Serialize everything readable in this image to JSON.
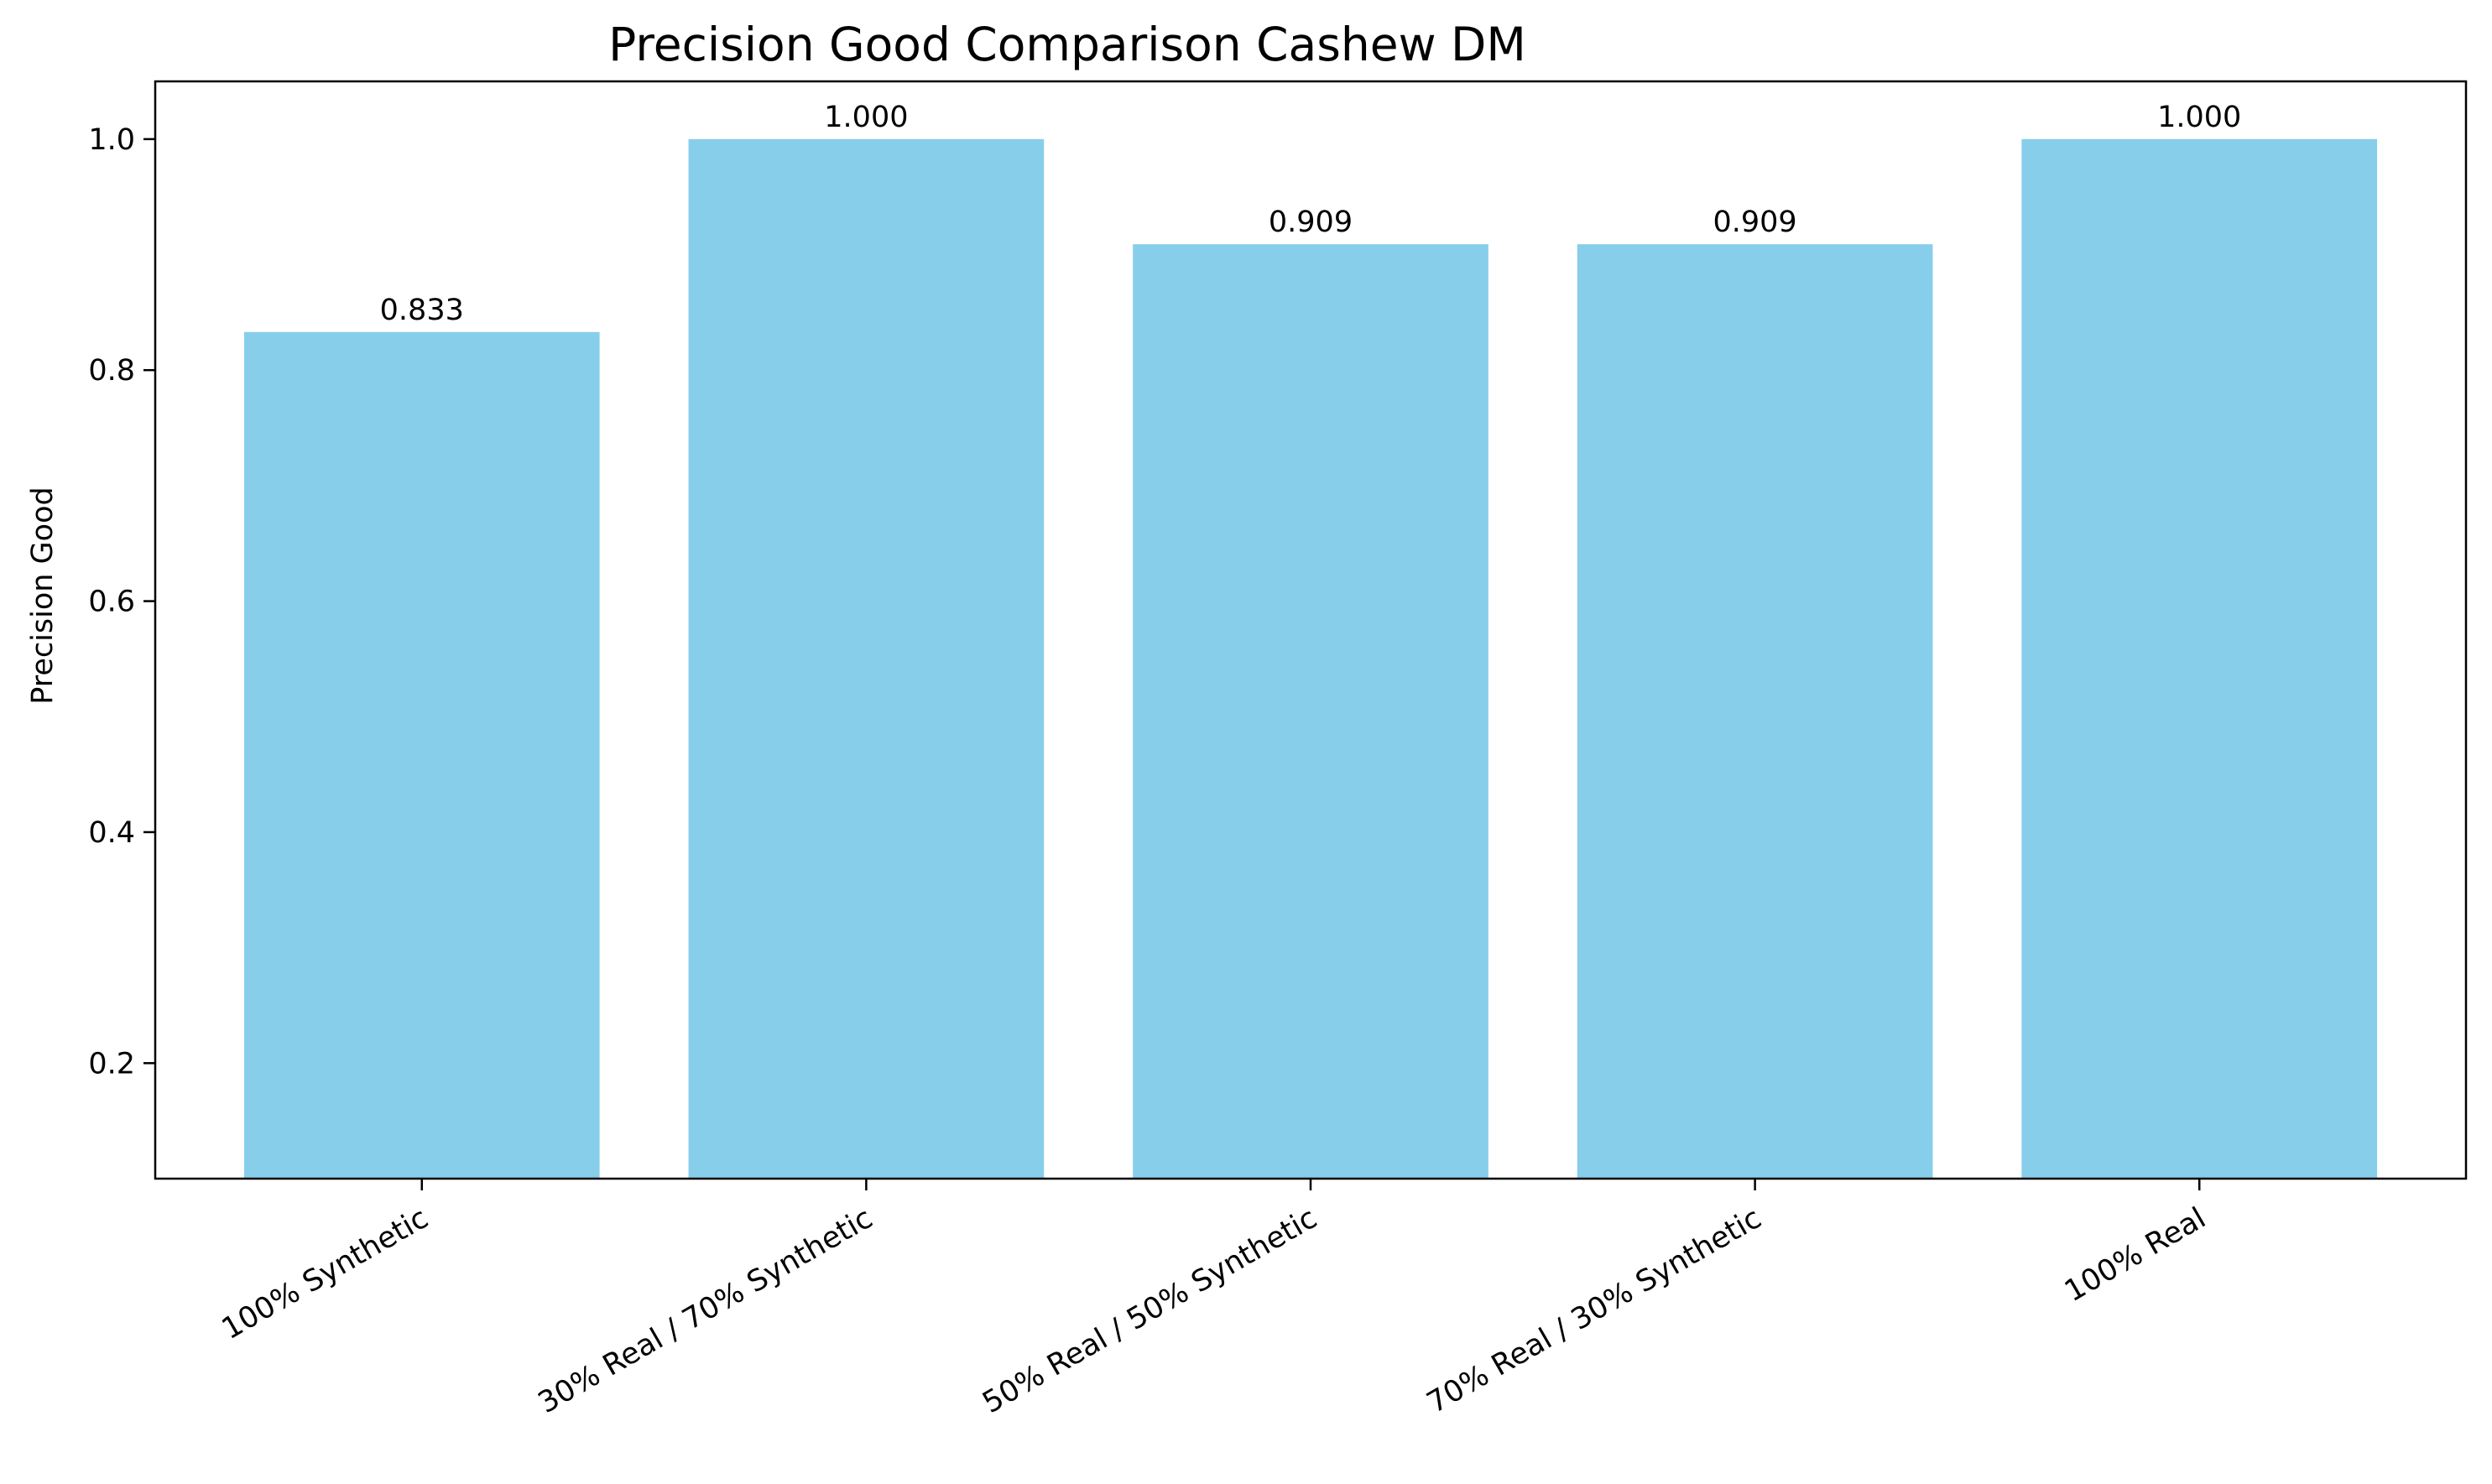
{
  "chart_data": {
    "type": "bar",
    "title": "Precision Good Comparison Cashew DM",
    "xlabel": "",
    "ylabel": "Precision Good",
    "categories": [
      "100% Synthetic",
      "30% Real / 70% Synthetic",
      "50% Real / 50% Synthetic",
      "70% Real / 30% Synthetic",
      "100% Real"
    ],
    "values": [
      0.833,
      1.0,
      0.909,
      0.909,
      1.0
    ],
    "value_labels": [
      "0.833",
      "1.000",
      "0.909",
      "0.909",
      "1.000"
    ],
    "ylim": [
      0.1,
      1.05
    ],
    "yticks": [
      0.2,
      0.4,
      0.6,
      0.8,
      1.0
    ],
    "ytick_labels": [
      "0.2",
      "0.4",
      "0.6",
      "0.8",
      "1.0"
    ],
    "bar_color": "#87CEEB",
    "grid": false,
    "legend": "none"
  }
}
